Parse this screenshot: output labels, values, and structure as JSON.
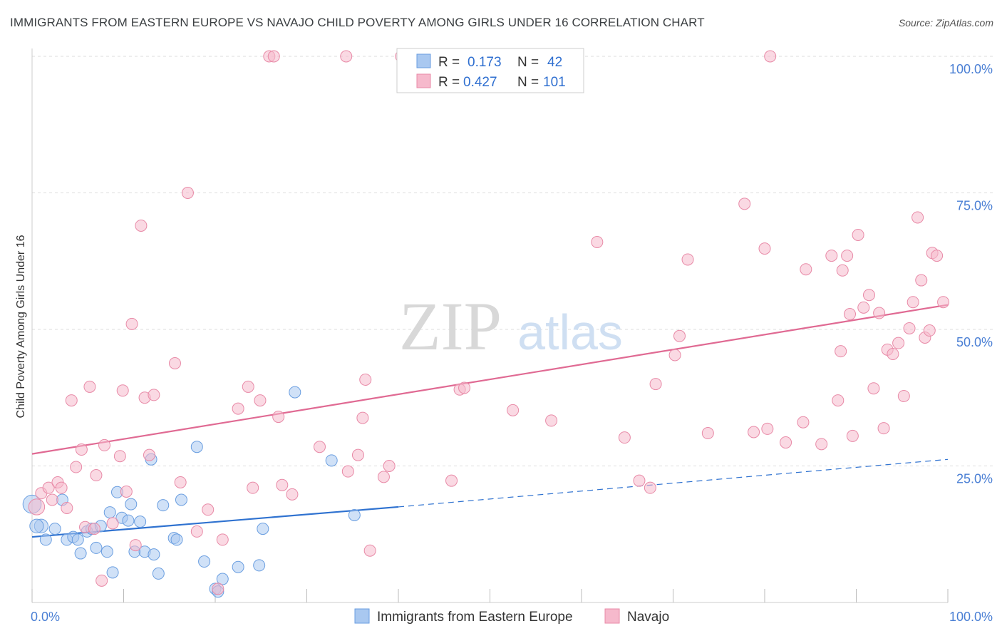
{
  "title": "IMMIGRANTS FROM EASTERN EUROPE VS NAVAJO CHILD POVERTY AMONG GIRLS UNDER 16 CORRELATION CHART",
  "source": "Source: ZipAtlas.com",
  "watermark": {
    "zip": "ZIP",
    "atlas": "atlas"
  },
  "colors": {
    "blue_fill": "#a9c8f0",
    "blue_stroke": "#6a9ee0",
    "blue_line": "#2f72d0",
    "pink_fill": "#f6b9cc",
    "pink_stroke": "#e88aa7",
    "pink_line": "#e06a93",
    "tick_text": "#4a7fd4",
    "grid": "#dddddd"
  },
  "legend_box": {
    "rows": [
      {
        "r_label": "R =",
        "r_value": "0.173",
        "n_label": "N =",
        "n_value": "42",
        "series": "blue"
      },
      {
        "r_label": "R =",
        "r_value": "0.427",
        "n_label": "N =",
        "n_value": "101",
        "series": "pink"
      }
    ]
  },
  "chart_data": {
    "type": "scatter",
    "title": "IMMIGRANTS FROM EASTERN EUROPE VS NAVAJO CHILD POVERTY AMONG GIRLS UNDER 16 CORRELATION CHART",
    "xlabel": "",
    "ylabel": "Child Poverty Among Girls Under 16",
    "xlim": [
      0,
      100
    ],
    "ylim": [
      0,
      100
    ],
    "x_tick_labels": [
      "0.0%",
      "100.0%"
    ],
    "y_tick_labels": [
      {
        "value": 25,
        "label": "25.0%"
      },
      {
        "value": 50,
        "label": "50.0%"
      },
      {
        "value": 75,
        "label": "75.0%"
      },
      {
        "value": 100,
        "label": "100.0%"
      }
    ],
    "grid": true,
    "legend_placement": "bottom-center",
    "series": [
      {
        "name": "Immigrants from Eastern Europe",
        "color": "blue",
        "R": 0.173,
        "N": 42,
        "trend": {
          "x0": 0,
          "y0": 12.0,
          "x1": 40,
          "y1": 17.5,
          "dashed_to_x": 100,
          "dashed_to_y": 26.2
        },
        "points": [
          [
            0.0,
            18.0,
            1.6
          ],
          [
            1.0,
            14.0,
            1.2
          ],
          [
            1.5,
            11.5,
            1
          ],
          [
            2.5,
            13.5,
            1
          ],
          [
            3.3,
            18.8,
            1
          ],
          [
            3.8,
            11.5,
            1
          ],
          [
            4.5,
            12.0,
            1
          ],
          [
            5.0,
            11.5,
            1
          ],
          [
            5.3,
            9.0,
            1
          ],
          [
            6.0,
            13.0,
            1
          ],
          [
            6.5,
            13.5,
            1
          ],
          [
            7.0,
            10.0,
            1
          ],
          [
            7.5,
            14.0,
            1
          ],
          [
            8.2,
            9.3,
            1
          ],
          [
            8.5,
            16.5,
            1
          ],
          [
            8.8,
            5.5,
            1
          ],
          [
            9.3,
            20.2,
            1
          ],
          [
            9.8,
            15.5,
            1
          ],
          [
            10.5,
            15.0,
            1
          ],
          [
            10.8,
            18.0,
            1
          ],
          [
            11.2,
            9.3,
            1
          ],
          [
            11.8,
            14.8,
            1
          ],
          [
            12.3,
            9.3,
            1
          ],
          [
            13.0,
            26.2,
            1
          ],
          [
            13.3,
            8.8,
            1
          ],
          [
            13.8,
            5.3,
            1
          ],
          [
            14.3,
            17.8,
            1
          ],
          [
            15.5,
            11.8,
            1
          ],
          [
            15.8,
            11.5,
            1
          ],
          [
            16.3,
            18.8,
            1
          ],
          [
            18.0,
            28.5,
            1
          ],
          [
            18.8,
            7.5,
            1
          ],
          [
            20.0,
            2.5,
            1
          ],
          [
            20.3,
            2.0,
            1
          ],
          [
            20.8,
            4.3,
            1
          ],
          [
            22.5,
            6.5,
            1
          ],
          [
            24.8,
            6.8,
            1
          ],
          [
            25.2,
            13.5,
            1
          ],
          [
            28.7,
            38.5,
            1
          ],
          [
            32.7,
            26.0,
            1
          ],
          [
            35.2,
            16.0,
            1
          ],
          [
            0.5,
            14.0,
            1.2
          ]
        ]
      },
      {
        "name": "Navajo",
        "color": "pink",
        "R": 0.427,
        "N": 101,
        "trend": {
          "x0": 0,
          "y0": 27.2,
          "x1": 100,
          "y1": 54.5
        },
        "points": [
          [
            0.5,
            17.5,
            1.4
          ],
          [
            1.0,
            20.0,
            1
          ],
          [
            1.8,
            21.0,
            1
          ],
          [
            2.2,
            18.8,
            1
          ],
          [
            2.8,
            22.0,
            1
          ],
          [
            3.2,
            21.0,
            1
          ],
          [
            3.8,
            17.3,
            1
          ],
          [
            4.3,
            37.0,
            1
          ],
          [
            4.8,
            24.8,
            1
          ],
          [
            5.4,
            28.0,
            1
          ],
          [
            5.8,
            13.8,
            1
          ],
          [
            6.3,
            39.5,
            1
          ],
          [
            6.8,
            13.5,
            1
          ],
          [
            7.0,
            23.3,
            1
          ],
          [
            7.6,
            4.0,
            1
          ],
          [
            7.9,
            28.8,
            1
          ],
          [
            8.8,
            14.5,
            1
          ],
          [
            9.6,
            26.8,
            1
          ],
          [
            9.9,
            38.8,
            1
          ],
          [
            10.3,
            20.3,
            1
          ],
          [
            10.9,
            51.0,
            1
          ],
          [
            11.3,
            10.5,
            1
          ],
          [
            11.9,
            69.0,
            1
          ],
          [
            12.3,
            37.5,
            1
          ],
          [
            12.8,
            27.0,
            1
          ],
          [
            13.3,
            38.0,
            1
          ],
          [
            15.6,
            43.8,
            1
          ],
          [
            16.2,
            22.0,
            1
          ],
          [
            17.0,
            75.0,
            1
          ],
          [
            18.0,
            13.0,
            1
          ],
          [
            19.2,
            17.0,
            1
          ],
          [
            20.3,
            2.5,
            1
          ],
          [
            20.8,
            11.5,
            1
          ],
          [
            22.5,
            35.5,
            1
          ],
          [
            23.6,
            39.5,
            1
          ],
          [
            24.1,
            21.0,
            1
          ],
          [
            24.9,
            37.0,
            1
          ],
          [
            25.9,
            100.0,
            1
          ],
          [
            26.4,
            100.0,
            1
          ],
          [
            26.9,
            34.0,
            1
          ],
          [
            27.3,
            21.5,
            1
          ],
          [
            28.4,
            19.8,
            1
          ],
          [
            31.4,
            28.5,
            1
          ],
          [
            34.3,
            100.0,
            1
          ],
          [
            34.5,
            24.0,
            1
          ],
          [
            35.6,
            27.0,
            1
          ],
          [
            36.1,
            33.8,
            1
          ],
          [
            36.4,
            40.8,
            1
          ],
          [
            36.9,
            9.5,
            1
          ],
          [
            38.4,
            23.0,
            1
          ],
          [
            39.0,
            25.0,
            1
          ],
          [
            40.3,
            100.0,
            1
          ],
          [
            45.8,
            22.3,
            1
          ],
          [
            46.7,
            39.0,
            1
          ],
          [
            47.2,
            39.3,
            1
          ],
          [
            52.5,
            35.2,
            1
          ],
          [
            56.7,
            33.3,
            1
          ],
          [
            61.7,
            66.0,
            1
          ],
          [
            64.7,
            30.2,
            1
          ],
          [
            66.3,
            22.3,
            1
          ],
          [
            67.5,
            21.0,
            1
          ],
          [
            68.1,
            40.0,
            1
          ],
          [
            70.2,
            45.3,
            1
          ],
          [
            70.7,
            48.8,
            1
          ],
          [
            71.6,
            62.8,
            1
          ],
          [
            73.8,
            31.0,
            1
          ],
          [
            77.8,
            73.0,
            1
          ],
          [
            78.8,
            31.2,
            1
          ],
          [
            80.0,
            64.8,
            1
          ],
          [
            80.3,
            31.8,
            1
          ],
          [
            80.6,
            100.0,
            1
          ],
          [
            82.3,
            29.3,
            1
          ],
          [
            84.2,
            33.0,
            1
          ],
          [
            84.5,
            61.0,
            1
          ],
          [
            86.2,
            29.0,
            1
          ],
          [
            87.3,
            63.5,
            1
          ],
          [
            88.0,
            37.0,
            1
          ],
          [
            88.3,
            46.0,
            1
          ],
          [
            88.5,
            60.8,
            1
          ],
          [
            89.0,
            63.5,
            1
          ],
          [
            89.3,
            52.8,
            1
          ],
          [
            89.6,
            30.5,
            1
          ],
          [
            90.2,
            67.3,
            1
          ],
          [
            90.8,
            54.0,
            1
          ],
          [
            91.4,
            56.3,
            1
          ],
          [
            91.9,
            39.2,
            1
          ],
          [
            92.5,
            53.0,
            1
          ],
          [
            93.0,
            31.9,
            1
          ],
          [
            93.4,
            46.3,
            1
          ],
          [
            94.0,
            45.5,
            1
          ],
          [
            94.6,
            47.5,
            1
          ],
          [
            95.2,
            37.8,
            1
          ],
          [
            95.8,
            50.2,
            1
          ],
          [
            96.2,
            55.0,
            1
          ],
          [
            96.7,
            70.5,
            1
          ],
          [
            97.1,
            59.0,
            1
          ],
          [
            97.5,
            48.5,
            1
          ],
          [
            98.0,
            49.8,
            1
          ],
          [
            98.3,
            64.0,
            1
          ],
          [
            98.8,
            63.5,
            1
          ],
          [
            99.5,
            55.0,
            1
          ]
        ]
      }
    ]
  }
}
